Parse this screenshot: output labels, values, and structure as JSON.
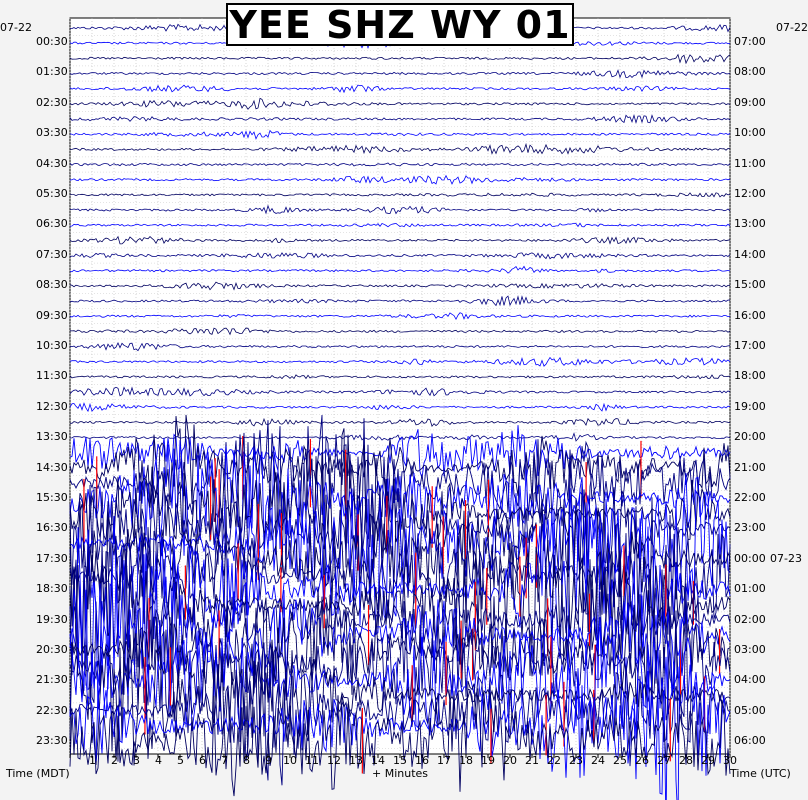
{
  "title": "YEE SHZ WY 01",
  "chart_data": {
    "type": "helicorder",
    "title": "YEE SHZ WY 01",
    "left_date": "07-22",
    "right_date_start": "07-22",
    "right_date_next": "07-23",
    "xlabel": "+ Minutes",
    "left_axis_label": "Time (MDT)",
    "right_axis_label": "Time (UTC)",
    "x_ticks": [
      "1",
      "2",
      "3",
      "4",
      "5",
      "6",
      "7",
      "8",
      "9",
      "10",
      "11",
      "12",
      "13",
      "14",
      "15",
      "16",
      "17",
      "18",
      "19",
      "20",
      "21",
      "22",
      "23",
      "24",
      "25",
      "26",
      "27",
      "28",
      "29",
      "30"
    ],
    "xlim": [
      0,
      30
    ],
    "left_hour_labels": [
      "00:30",
      "01:30",
      "02:30",
      "03:30",
      "04:30",
      "05:30",
      "06:30",
      "07:30",
      "08:30",
      "09:30",
      "10:30",
      "11:30",
      "12:30",
      "13:30",
      "14:30",
      "15:30",
      "16:30",
      "17:30",
      "18:30",
      "19:30",
      "20:30",
      "21:30",
      "22:30",
      "23:30"
    ],
    "right_hour_labels": [
      "07:00",
      "08:00",
      "09:00",
      "10:00",
      "11:00",
      "12:00",
      "13:00",
      "14:00",
      "15:00",
      "16:00",
      "17:00",
      "18:00",
      "19:00",
      "20:00",
      "21:00",
      "22:00",
      "23:00",
      "00:00",
      "01:00",
      "02:00",
      "03:00",
      "04:00",
      "05:00",
      "06:00"
    ],
    "trace_colors": [
      "#000080",
      "#0000ff",
      "#000060"
    ],
    "clip_color": "#ff0000",
    "line_minutes": 30,
    "lines_count": 48,
    "activity_by_line": [
      0.05,
      0.06,
      0.05,
      0.05,
      0.05,
      0.05,
      0.05,
      0.05,
      0.08,
      0.05,
      0.05,
      0.05,
      0.08,
      0.1,
      0.05,
      0.08,
      0.05,
      0.05,
      0.07,
      0.05,
      0.06,
      0.05,
      0.06,
      0.07,
      0.08,
      0.09,
      0.09,
      0.12,
      0.4,
      0.65,
      0.9,
      1.0,
      1.0,
      1.0,
      1.0,
      1.0,
      1.0,
      1.0,
      1.0,
      1.0,
      1.0,
      1.0,
      1.0,
      1.0,
      1.0,
      1.0,
      1.0,
      1.0
    ]
  }
}
